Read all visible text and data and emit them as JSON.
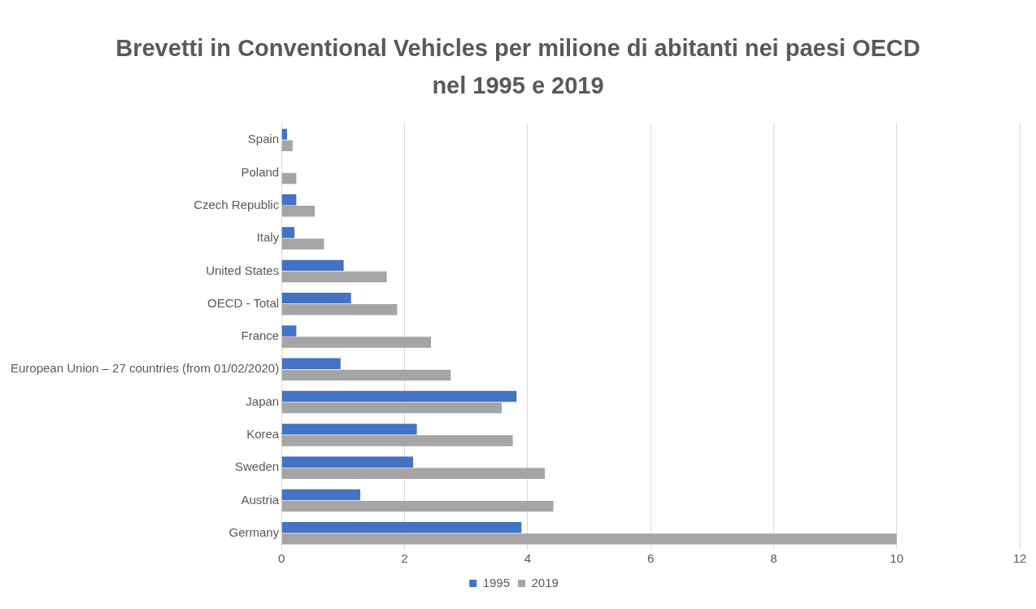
{
  "chart_data": {
    "type": "bar",
    "orientation": "horizontal",
    "title": "Brevetti in Conventional Vehicles per milione di abitanti nei paesi OECD nel 1995 e 2019",
    "categories": [
      "Spain",
      "Poland",
      "Czech Republic",
      "Italy",
      "United States",
      "OECD - Total",
      "France",
      "European Union – 27 countries (from 01/02/2020)",
      "Japan",
      "Korea",
      "Sweden",
      "Austria",
      "Germany"
    ],
    "series": [
      {
        "name": "1995",
        "color": "#4472c4",
        "values": [
          0.09,
          0,
          0.24,
          0.21,
          1.01,
          1.13,
          0.24,
          0.96,
          3.82,
          2.2,
          2.14,
          1.28,
          3.9
        ]
      },
      {
        "name": "2019",
        "color": "#a5a5a5",
        "values": [
          0.18,
          0.24,
          0.54,
          0.69,
          1.71,
          1.88,
          2.43,
          2.75,
          3.58,
          3.76,
          4.28,
          4.42,
          10.0
        ]
      }
    ],
    "xlim": [
      0,
      12
    ],
    "xticks": [
      0,
      2,
      4,
      6,
      8,
      10,
      12
    ],
    "grid": "x",
    "legend": "bottom"
  }
}
